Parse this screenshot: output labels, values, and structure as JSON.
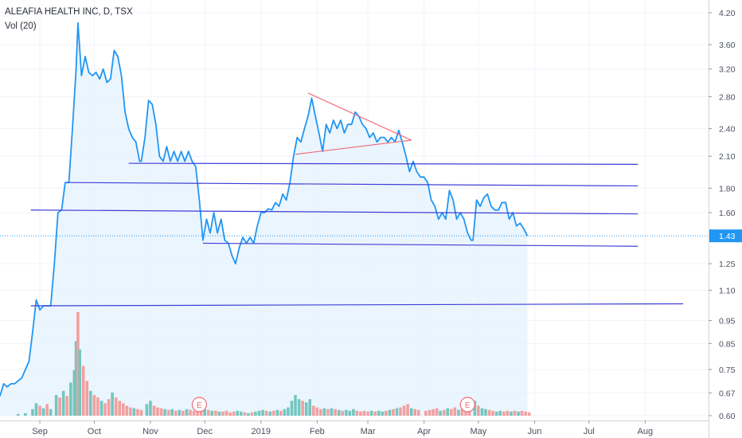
{
  "header": {
    "title": "ALEAFIA HEALTH INC, D, TSX",
    "volume_label": "Vol (20)"
  },
  "colors": {
    "price_line": "#2196f3",
    "price_fill": "#e3f1fd",
    "trendline": "#3f3fd4",
    "triangle": "#ef6b75",
    "vol_up": "#74c6be",
    "vol_down": "#f2a09f",
    "grid": "#f0f3fa",
    "last_price_tag": "#2196f3",
    "earnings_marker": "#ef6b75"
  },
  "chart_data": {
    "type": "line",
    "title": "ALEAFIA HEALTH INC, D, TSX",
    "y_scale": "log",
    "ylim": [
      0.6,
      4.2
    ],
    "y_ticks": [
      "4.20",
      "3.60",
      "3.20",
      "2.80",
      "2.40",
      "2.10",
      "1.80",
      "1.60",
      "1.43",
      "1.25",
      "1.10",
      "0.95",
      "0.85",
      "0.75",
      "0.67",
      "0.60"
    ],
    "x_ticks": [
      "Sep",
      "Oct",
      "Nov",
      "Dec",
      "2019",
      "Feb",
      "Mar",
      "Apr",
      "May",
      "Jun",
      "Jul",
      "Aug"
    ],
    "x_range": [
      "2018-08-10",
      "2019-09-05"
    ],
    "last_price": "1.43",
    "price_series": [
      [
        "2018-08-10",
        0.66
      ],
      [
        "2018-08-12",
        0.7
      ],
      [
        "2018-08-14",
        0.69
      ],
      [
        "2018-08-16",
        0.7
      ],
      [
        "2018-08-18",
        0.7
      ],
      [
        "2018-08-20",
        0.71
      ],
      [
        "2018-08-22",
        0.72
      ],
      [
        "2018-08-24",
        0.75
      ],
      [
        "2018-08-26",
        0.78
      ],
      [
        "2018-08-28",
        0.9
      ],
      [
        "2018-08-30",
        1.05
      ],
      [
        "2018-09-01",
        1.0
      ],
      [
        "2018-09-03",
        1.02
      ],
      [
        "2018-09-05",
        1.02
      ],
      [
        "2018-09-07",
        1.02
      ],
      [
        "2018-09-09",
        1.25
      ],
      [
        "2018-09-11",
        1.6
      ],
      [
        "2018-09-13",
        1.62
      ],
      [
        "2018-09-15",
        1.85
      ],
      [
        "2018-09-17",
        1.85
      ],
      [
        "2018-09-19",
        2.4
      ],
      [
        "2018-09-21",
        3.2
      ],
      [
        "2018-09-22",
        4.0
      ],
      [
        "2018-09-24",
        3.1
      ],
      [
        "2018-09-26",
        3.4
      ],
      [
        "2018-09-28",
        3.15
      ],
      [
        "2018-09-30",
        3.1
      ],
      [
        "2018-10-02",
        3.15
      ],
      [
        "2018-10-04",
        3.05
      ],
      [
        "2018-10-06",
        3.2
      ],
      [
        "2018-10-08",
        3.0
      ],
      [
        "2018-10-10",
        3.05
      ],
      [
        "2018-10-12",
        3.5
      ],
      [
        "2018-10-14",
        3.4
      ],
      [
        "2018-10-16",
        3.1
      ],
      [
        "2018-10-18",
        2.6
      ],
      [
        "2018-10-20",
        2.4
      ],
      [
        "2018-10-22",
        2.3
      ],
      [
        "2018-10-24",
        2.25
      ],
      [
        "2018-10-26",
        2.05
      ],
      [
        "2018-10-27",
        2.05
      ],
      [
        "2018-10-29",
        2.3
      ],
      [
        "2018-10-31",
        2.75
      ],
      [
        "2018-11-02",
        2.7
      ],
      [
        "2018-11-04",
        2.45
      ],
      [
        "2018-11-06",
        2.1
      ],
      [
        "2018-11-08",
        2.05
      ],
      [
        "2018-11-10",
        2.2
      ],
      [
        "2018-11-12",
        2.05
      ],
      [
        "2018-11-14",
        2.15
      ],
      [
        "2018-11-16",
        2.05
      ],
      [
        "2018-11-18",
        2.15
      ],
      [
        "2018-11-20",
        2.05
      ],
      [
        "2018-11-22",
        2.15
      ],
      [
        "2018-11-24",
        2.05
      ],
      [
        "2018-11-26",
        2.0
      ],
      [
        "2018-11-28",
        1.7
      ],
      [
        "2018-11-30",
        1.4
      ],
      [
        "2018-12-02",
        1.55
      ],
      [
        "2018-12-04",
        1.45
      ],
      [
        "2018-12-06",
        1.6
      ],
      [
        "2018-12-08",
        1.45
      ],
      [
        "2018-12-10",
        1.55
      ],
      [
        "2018-12-12",
        1.4
      ],
      [
        "2018-12-14",
        1.38
      ],
      [
        "2018-12-16",
        1.3
      ],
      [
        "2018-12-18",
        1.25
      ],
      [
        "2018-12-20",
        1.35
      ],
      [
        "2018-12-22",
        1.42
      ],
      [
        "2018-12-24",
        1.38
      ],
      [
        "2018-12-26",
        1.42
      ],
      [
        "2018-12-28",
        1.38
      ],
      [
        "2018-12-30",
        1.5
      ],
      [
        "2019-01-01",
        1.6
      ],
      [
        "2019-01-03",
        1.6
      ],
      [
        "2019-01-05",
        1.63
      ],
      [
        "2019-01-07",
        1.62
      ],
      [
        "2019-01-09",
        1.68
      ],
      [
        "2019-01-11",
        1.65
      ],
      [
        "2019-01-13",
        1.75
      ],
      [
        "2019-01-15",
        1.7
      ],
      [
        "2019-01-17",
        1.85
      ],
      [
        "2019-01-19",
        2.1
      ],
      [
        "2019-01-21",
        2.3
      ],
      [
        "2019-01-23",
        2.25
      ],
      [
        "2019-01-25",
        2.4
      ],
      [
        "2019-01-27",
        2.55
      ],
      [
        "2019-01-29",
        2.78
      ],
      [
        "2019-01-31",
        2.55
      ],
      [
        "2019-02-02",
        2.35
      ],
      [
        "2019-02-04",
        2.15
      ],
      [
        "2019-02-06",
        2.45
      ],
      [
        "2019-02-08",
        2.35
      ],
      [
        "2019-02-10",
        2.5
      ],
      [
        "2019-02-12",
        2.4
      ],
      [
        "2019-02-14",
        2.5
      ],
      [
        "2019-02-16",
        2.35
      ],
      [
        "2019-02-18",
        2.45
      ],
      [
        "2019-02-20",
        2.45
      ],
      [
        "2019-02-22",
        2.6
      ],
      [
        "2019-02-24",
        2.55
      ],
      [
        "2019-02-26",
        2.45
      ],
      [
        "2019-02-28",
        2.4
      ],
      [
        "2019-03-02",
        2.3
      ],
      [
        "2019-03-04",
        2.35
      ],
      [
        "2019-03-06",
        2.25
      ],
      [
        "2019-03-08",
        2.3
      ],
      [
        "2019-03-10",
        2.3
      ],
      [
        "2019-03-12",
        2.25
      ],
      [
        "2019-03-14",
        2.3
      ],
      [
        "2019-03-16",
        2.25
      ],
      [
        "2019-03-18",
        2.38
      ],
      [
        "2019-03-20",
        2.25
      ],
      [
        "2019-03-22",
        2.1
      ],
      [
        "2019-03-24",
        1.95
      ],
      [
        "2019-03-26",
        2.05
      ],
      [
        "2019-03-28",
        1.95
      ],
      [
        "2019-03-30",
        1.9
      ],
      [
        "2019-04-01",
        1.9
      ],
      [
        "2019-04-03",
        1.85
      ],
      [
        "2019-04-05",
        1.7
      ],
      [
        "2019-04-07",
        1.65
      ],
      [
        "2019-04-09",
        1.55
      ],
      [
        "2019-04-11",
        1.6
      ],
      [
        "2019-04-13",
        1.55
      ],
      [
        "2019-04-15",
        1.78
      ],
      [
        "2019-04-17",
        1.7
      ],
      [
        "2019-04-19",
        1.55
      ],
      [
        "2019-04-21",
        1.6
      ],
      [
        "2019-04-23",
        1.55
      ],
      [
        "2019-04-25",
        1.45
      ],
      [
        "2019-04-27",
        1.4
      ],
      [
        "2019-04-28",
        1.4
      ],
      [
        "2019-04-30",
        1.7
      ],
      [
        "2019-05-02",
        1.65
      ],
      [
        "2019-05-04",
        1.72
      ],
      [
        "2019-05-06",
        1.75
      ],
      [
        "2019-05-08",
        1.65
      ],
      [
        "2019-05-10",
        1.62
      ],
      [
        "2019-05-12",
        1.62
      ],
      [
        "2019-05-14",
        1.68
      ],
      [
        "2019-05-16",
        1.68
      ],
      [
        "2019-05-18",
        1.55
      ],
      [
        "2019-05-20",
        1.6
      ],
      [
        "2019-05-22",
        1.5
      ],
      [
        "2019-05-24",
        1.52
      ],
      [
        "2019-05-26",
        1.48
      ],
      [
        "2019-05-28",
        1.43
      ]
    ],
    "volume_series": [
      [
        "2018-08-20",
        2,
        "up"
      ],
      [
        "2018-08-24",
        3,
        "up"
      ],
      [
        "2018-08-28",
        8,
        "up"
      ],
      [
        "2018-08-30",
        15,
        "up"
      ],
      [
        "2018-09-01",
        12,
        "down"
      ],
      [
        "2018-09-03",
        9,
        "up"
      ],
      [
        "2018-09-05",
        14,
        "down"
      ],
      [
        "2018-09-07",
        8,
        "up"
      ],
      [
        "2018-09-10",
        25,
        "up"
      ],
      [
        "2018-09-12",
        22,
        "down"
      ],
      [
        "2018-09-14",
        30,
        "up"
      ],
      [
        "2018-09-16",
        24,
        "down"
      ],
      [
        "2018-09-18",
        40,
        "up"
      ],
      [
        "2018-09-20",
        55,
        "up"
      ],
      [
        "2018-09-21",
        90,
        "up"
      ],
      [
        "2018-09-22",
        125,
        "down"
      ],
      [
        "2018-09-23",
        80,
        "up"
      ],
      [
        "2018-09-25",
        60,
        "down"
      ],
      [
        "2018-09-27",
        42,
        "down"
      ],
      [
        "2018-09-29",
        30,
        "up"
      ],
      [
        "2018-10-01",
        25,
        "down"
      ],
      [
        "2018-10-03",
        22,
        "down"
      ],
      [
        "2018-10-05",
        18,
        "up"
      ],
      [
        "2018-10-07",
        15,
        "down"
      ],
      [
        "2018-10-09",
        20,
        "down"
      ],
      [
        "2018-10-11",
        28,
        "up"
      ],
      [
        "2018-10-13",
        22,
        "down"
      ],
      [
        "2018-10-15",
        18,
        "down"
      ],
      [
        "2018-10-17",
        15,
        "down"
      ],
      [
        "2018-10-19",
        12,
        "down"
      ],
      [
        "2018-10-21",
        10,
        "down"
      ],
      [
        "2018-10-23",
        9,
        "up"
      ],
      [
        "2018-10-25",
        8,
        "down"
      ],
      [
        "2018-10-27",
        7,
        "down"
      ],
      [
        "2018-10-30",
        14,
        "up"
      ],
      [
        "2018-11-01",
        18,
        "up"
      ],
      [
        "2018-11-03",
        12,
        "down"
      ],
      [
        "2018-11-05",
        10,
        "down"
      ],
      [
        "2018-11-07",
        9,
        "down"
      ],
      [
        "2018-11-09",
        8,
        "up"
      ],
      [
        "2018-11-11",
        7,
        "down"
      ],
      [
        "2018-11-13",
        8,
        "up"
      ],
      [
        "2018-11-15",
        6,
        "down"
      ],
      [
        "2018-11-17",
        7,
        "up"
      ],
      [
        "2018-11-19",
        6,
        "down"
      ],
      [
        "2018-11-21",
        8,
        "up"
      ],
      [
        "2018-11-23",
        7,
        "down"
      ],
      [
        "2018-11-25",
        6,
        "down"
      ],
      [
        "2018-11-27",
        10,
        "down"
      ],
      [
        "2018-11-29",
        9,
        "down"
      ],
      [
        "2018-12-01",
        8,
        "up"
      ],
      [
        "2018-12-03",
        7,
        "down"
      ],
      [
        "2018-12-05",
        6,
        "up"
      ],
      [
        "2018-12-07",
        6,
        "down"
      ],
      [
        "2018-12-09",
        5,
        "up"
      ],
      [
        "2018-12-11",
        5,
        "down"
      ],
      [
        "2018-12-13",
        6,
        "down"
      ],
      [
        "2018-12-15",
        4,
        "down"
      ],
      [
        "2018-12-17",
        5,
        "down"
      ],
      [
        "2018-12-19",
        6,
        "up"
      ],
      [
        "2018-12-21",
        5,
        "up"
      ],
      [
        "2018-12-23",
        4,
        "down"
      ],
      [
        "2018-12-25",
        3,
        "up"
      ],
      [
        "2018-12-27",
        4,
        "down"
      ],
      [
        "2018-12-29",
        5,
        "up"
      ],
      [
        "2018-12-31",
        6,
        "up"
      ],
      [
        "2019-01-02",
        7,
        "up"
      ],
      [
        "2019-01-04",
        6,
        "down"
      ],
      [
        "2019-01-06",
        5,
        "up"
      ],
      [
        "2019-01-08",
        6,
        "down"
      ],
      [
        "2019-01-10",
        7,
        "up"
      ],
      [
        "2019-01-12",
        6,
        "down"
      ],
      [
        "2019-01-14",
        8,
        "up"
      ],
      [
        "2019-01-16",
        10,
        "up"
      ],
      [
        "2019-01-18",
        18,
        "up"
      ],
      [
        "2019-01-20",
        25,
        "up"
      ],
      [
        "2019-01-22",
        20,
        "up"
      ],
      [
        "2019-01-24",
        18,
        "down"
      ],
      [
        "2019-01-26",
        16,
        "up"
      ],
      [
        "2019-01-28",
        20,
        "up"
      ],
      [
        "2019-01-30",
        12,
        "down"
      ],
      [
        "2019-02-01",
        10,
        "down"
      ],
      [
        "2019-02-03",
        8,
        "down"
      ],
      [
        "2019-02-05",
        9,
        "up"
      ],
      [
        "2019-02-07",
        8,
        "down"
      ],
      [
        "2019-02-09",
        9,
        "up"
      ],
      [
        "2019-02-11",
        8,
        "down"
      ],
      [
        "2019-02-13",
        7,
        "up"
      ],
      [
        "2019-02-15",
        6,
        "down"
      ],
      [
        "2019-02-17",
        7,
        "up"
      ],
      [
        "2019-02-19",
        6,
        "up"
      ],
      [
        "2019-02-21",
        8,
        "up"
      ],
      [
        "2019-02-23",
        6,
        "down"
      ],
      [
        "2019-02-25",
        5,
        "down"
      ],
      [
        "2019-02-27",
        6,
        "down"
      ],
      [
        "2019-03-01",
        5,
        "down"
      ],
      [
        "2019-03-03",
        6,
        "up"
      ],
      [
        "2019-03-05",
        5,
        "down"
      ],
      [
        "2019-03-07",
        6,
        "up"
      ],
      [
        "2019-03-09",
        5,
        "up"
      ],
      [
        "2019-03-11",
        6,
        "down"
      ],
      [
        "2019-03-13",
        7,
        "up"
      ],
      [
        "2019-03-15",
        8,
        "down"
      ],
      [
        "2019-03-17",
        9,
        "up"
      ],
      [
        "2019-03-19",
        10,
        "down"
      ],
      [
        "2019-03-21",
        12,
        "down"
      ],
      [
        "2019-03-23",
        14,
        "down"
      ],
      [
        "2019-03-25",
        9,
        "up"
      ],
      [
        "2019-03-27",
        8,
        "down"
      ],
      [
        "2019-03-29",
        7,
        "down"
      ],
      [
        "2019-04-02",
        6,
        "down"
      ],
      [
        "2019-04-04",
        7,
        "down"
      ],
      [
        "2019-04-06",
        8,
        "down"
      ],
      [
        "2019-04-08",
        9,
        "down"
      ],
      [
        "2019-04-10",
        6,
        "up"
      ],
      [
        "2019-04-12",
        7,
        "down"
      ],
      [
        "2019-04-14",
        9,
        "up"
      ],
      [
        "2019-04-16",
        8,
        "down"
      ],
      [
        "2019-04-18",
        10,
        "down"
      ],
      [
        "2019-04-20",
        7,
        "up"
      ],
      [
        "2019-04-22",
        8,
        "down"
      ],
      [
        "2019-04-24",
        9,
        "down"
      ],
      [
        "2019-04-26",
        11,
        "down"
      ],
      [
        "2019-04-29",
        18,
        "up"
      ],
      [
        "2019-05-01",
        12,
        "down"
      ],
      [
        "2019-05-03",
        9,
        "up"
      ],
      [
        "2019-05-05",
        8,
        "up"
      ],
      [
        "2019-05-07",
        7,
        "down"
      ],
      [
        "2019-05-09",
        6,
        "down"
      ],
      [
        "2019-05-11",
        5,
        "up"
      ],
      [
        "2019-05-13",
        6,
        "up"
      ],
      [
        "2019-05-15",
        5,
        "down"
      ],
      [
        "2019-05-17",
        6,
        "down"
      ],
      [
        "2019-05-19",
        5,
        "up"
      ],
      [
        "2019-05-21",
        6,
        "down"
      ],
      [
        "2019-05-23",
        5,
        "up"
      ],
      [
        "2019-05-25",
        6,
        "down"
      ],
      [
        "2019-05-27",
        5,
        "down"
      ],
      [
        "2019-05-29",
        4,
        "down"
      ]
    ],
    "volume_max": 125,
    "horizontal_lines": [
      {
        "x1": "2018-10-20",
        "y1": 2.03,
        "x2": "2019-07-28",
        "y2": 2.02
      },
      {
        "x1": "2018-09-16",
        "y1": 1.85,
        "x2": "2019-07-28",
        "y2": 1.82
      },
      {
        "x1": "2018-08-27",
        "y1": 1.62,
        "x2": "2019-07-28",
        "y2": 1.59
      },
      {
        "x1": "2018-11-30",
        "y1": 1.38,
        "x2": "2019-07-28",
        "y2": 1.36
      },
      {
        "x1": "2018-08-27",
        "y1": 1.02,
        "x2": "2019-08-22",
        "y2": 1.03
      }
    ],
    "triangle": {
      "upper": {
        "x1": "2019-01-27",
        "y1": 2.85,
        "x2": "2019-03-25",
        "y2": 2.27
      },
      "lower": {
        "x1": "2019-01-20",
        "y1": 2.12,
        "x2": "2019-03-25",
        "y2": 2.27
      }
    },
    "earnings_markers": [
      {
        "date": "2018-11-28",
        "label": "E"
      },
      {
        "date": "2019-04-25",
        "label": "E"
      }
    ]
  }
}
